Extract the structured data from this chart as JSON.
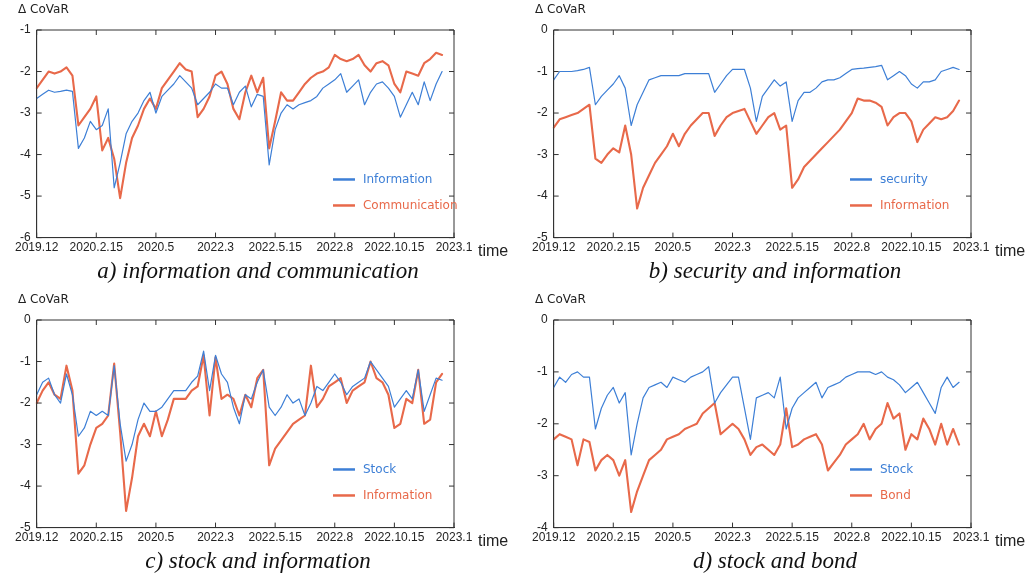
{
  "chart_data": [
    {
      "type": "line",
      "title": "a) information and communication",
      "xlabel": "time",
      "ylabel": "Δ CoVaR",
      "legend": "right",
      "grid": false,
      "marker": "none",
      "line_style": "solid",
      "categories": [
        "2019.12",
        null,
        null,
        null,
        null,
        null,
        null,
        null,
        null,
        null,
        "2020.2.15",
        null,
        null,
        null,
        null,
        null,
        null,
        null,
        null,
        null,
        "2020.5",
        null,
        null,
        null,
        null,
        null,
        null,
        null,
        null,
        null,
        "2022.3",
        null,
        null,
        null,
        null,
        null,
        null,
        null,
        null,
        null,
        "2022.5.15",
        null,
        null,
        null,
        null,
        null,
        null,
        null,
        null,
        null,
        "2022.8",
        null,
        null,
        null,
        null,
        null,
        null,
        null,
        null,
        null,
        "2022.10.15",
        null,
        null,
        null,
        null,
        null,
        null,
        null,
        null,
        null,
        "2023.1"
      ],
      "ylim": [
        -6,
        -1
      ],
      "yticks": [
        -6,
        -5,
        -4,
        -3,
        -2,
        -1
      ],
      "series": [
        {
          "name": "Information",
          "color": "#3d7fd6",
          "values": [
            -2.65,
            -2.55,
            -2.45,
            -2.5,
            -2.48,
            -2.45,
            -2.48,
            -3.85,
            -3.6,
            -3.2,
            -3.4,
            -3.3,
            -2.9,
            -4.8,
            -4.2,
            -3.5,
            -3.2,
            -3.0,
            -2.7,
            -2.5,
            -3.0,
            -2.6,
            -2.45,
            -2.3,
            -2.1,
            -2.25,
            -2.4,
            -2.8,
            -2.65,
            -2.5,
            -2.3,
            -2.4,
            -2.4,
            -2.8,
            -2.5,
            -2.35,
            -2.85,
            -2.55,
            -2.6,
            -4.25,
            -3.4,
            -3.0,
            -2.8,
            -2.9,
            -2.8,
            -2.75,
            -2.7,
            -2.6,
            -2.4,
            -2.3,
            -2.2,
            -2.05,
            -2.5,
            -2.35,
            -2.2,
            -2.8,
            -2.5,
            -2.3,
            -2.25,
            -2.4,
            -2.6,
            -3.1,
            -2.8,
            -2.5,
            -2.8,
            -2.25,
            -2.7,
            -2.3,
            -2.0,
            null,
            null
          ]
        },
        {
          "name": "Communication",
          "color": "#e8694a",
          "values": [
            -2.4,
            -2.2,
            -2.0,
            -2.05,
            -2.0,
            -1.9,
            -2.1,
            -3.3,
            -3.1,
            -2.9,
            -2.6,
            -3.9,
            -3.6,
            -4.1,
            -5.05,
            -4.2,
            -3.6,
            -3.3,
            -2.9,
            -2.65,
            -2.9,
            -2.4,
            -2.2,
            -2.0,
            -1.8,
            -1.95,
            -2.0,
            -3.1,
            -2.9,
            -2.6,
            -2.1,
            -2.0,
            -2.3,
            -2.9,
            -3.15,
            -2.5,
            -2.1,
            -2.5,
            -2.15,
            -3.85,
            -3.2,
            -2.5,
            -2.7,
            -2.7,
            -2.5,
            -2.3,
            -2.15,
            -2.05,
            -2.0,
            -1.9,
            -1.6,
            -1.7,
            -1.75,
            -1.7,
            -1.6,
            -1.85,
            -2.0,
            -1.8,
            -1.75,
            -1.85,
            -2.3,
            -2.5,
            -2.0,
            -2.05,
            -2.1,
            -1.8,
            -1.7,
            -1.55,
            -1.6,
            null,
            null
          ]
        }
      ]
    },
    {
      "type": "line",
      "title": "b) security and information",
      "xlabel": "time",
      "ylabel": "Δ CoVaR",
      "legend": "right",
      "grid": false,
      "marker": "none",
      "line_style": "solid",
      "categories": [
        "2019.12",
        null,
        null,
        null,
        null,
        null,
        null,
        null,
        null,
        null,
        "2020.2.15",
        null,
        null,
        null,
        null,
        null,
        null,
        null,
        null,
        null,
        "2020.5",
        null,
        null,
        null,
        null,
        null,
        null,
        null,
        null,
        null,
        "2022.3",
        null,
        null,
        null,
        null,
        null,
        null,
        null,
        null,
        null,
        "2022.5.15",
        null,
        null,
        null,
        null,
        null,
        null,
        null,
        null,
        null,
        "2022.8",
        null,
        null,
        null,
        null,
        null,
        null,
        null,
        null,
        null,
        "2022.10.15",
        null,
        null,
        null,
        null,
        null,
        null,
        null,
        null,
        null,
        "2023.1"
      ],
      "ylim": [
        -5,
        0
      ],
      "yticks": [
        -5,
        -4,
        -3,
        -2,
        -1,
        0
      ],
      "series": [
        {
          "name": "security",
          "color": "#3d7fd6",
          "values": [
            -1.2,
            -1.0,
            -1.0,
            -1.0,
            -0.98,
            -0.95,
            -0.9,
            -1.8,
            -1.6,
            -1.45,
            -1.3,
            -1.1,
            -1.4,
            -2.3,
            -1.8,
            -1.5,
            -1.2,
            -1.15,
            -1.1,
            -1.1,
            -1.1,
            -1.1,
            -1.05,
            -1.05,
            -1.05,
            -1.05,
            -1.05,
            -1.5,
            -1.3,
            -1.1,
            -0.95,
            -0.95,
            -0.95,
            -1.4,
            -2.2,
            -1.6,
            -1.4,
            -1.2,
            -1.35,
            -1.25,
            -2.2,
            -1.7,
            -1.5,
            -1.5,
            -1.4,
            -1.25,
            -1.2,
            -1.2,
            -1.15,
            -1.05,
            -0.95,
            -0.93,
            -0.92,
            -0.9,
            -0.88,
            -0.85,
            -1.2,
            -1.1,
            -1.0,
            -1.1,
            -1.3,
            -1.4,
            -1.25,
            -1.25,
            -1.2,
            -1.0,
            -0.95,
            -0.9,
            -0.95,
            null,
            null
          ]
        },
        {
          "name": "Information",
          "color": "#e8694a",
          "values": [
            -2.35,
            -2.15,
            -2.1,
            -2.05,
            -2.0,
            -1.9,
            -1.8,
            -3.1,
            -3.2,
            -3.0,
            -2.85,
            -2.95,
            -2.3,
            -3.0,
            -4.3,
            -3.8,
            -3.5,
            -3.2,
            -3.0,
            -2.8,
            -2.5,
            -2.8,
            -2.5,
            -2.3,
            -2.15,
            -2.0,
            -2.0,
            -2.55,
            -2.3,
            -2.1,
            -2.0,
            -1.95,
            -1.9,
            -2.2,
            -2.5,
            -2.3,
            -2.1,
            -2.0,
            -2.4,
            -2.3,
            -3.8,
            -3.6,
            -3.3,
            -3.15,
            -3.0,
            -2.85,
            -2.7,
            -2.55,
            -2.4,
            -2.2,
            -2.0,
            -1.65,
            -1.7,
            -1.7,
            -1.75,
            -1.85,
            -2.3,
            -2.1,
            -2.0,
            -2.0,
            -2.2,
            -2.7,
            -2.4,
            -2.25,
            -2.1,
            -2.15,
            -2.1,
            -1.95,
            -1.7,
            null,
            null
          ]
        }
      ]
    },
    {
      "type": "line",
      "title": "c) stock and information",
      "xlabel": "time",
      "ylabel": "Δ CoVaR",
      "legend": "right",
      "grid": false,
      "marker": "none",
      "line_style": "solid",
      "categories": [
        "2019.12",
        null,
        null,
        null,
        null,
        null,
        null,
        null,
        null,
        null,
        "2020.2.15",
        null,
        null,
        null,
        null,
        null,
        null,
        null,
        null,
        null,
        "2020.5",
        null,
        null,
        null,
        null,
        null,
        null,
        null,
        null,
        null,
        "2022.3",
        null,
        null,
        null,
        null,
        null,
        null,
        null,
        null,
        null,
        "2022.5.15",
        null,
        null,
        null,
        null,
        null,
        null,
        null,
        null,
        null,
        "2022.8",
        null,
        null,
        null,
        null,
        null,
        null,
        null,
        null,
        null,
        "2022.10.15",
        null,
        null,
        null,
        null,
        null,
        null,
        null,
        null,
        null,
        "2023.1"
      ],
      "ylim": [
        -5,
        0
      ],
      "yticks": [
        -5,
        -4,
        -3,
        -2,
        -1,
        0
      ],
      "series": [
        {
          "name": "Stock",
          "color": "#3d7fd6",
          "values": [
            -1.8,
            -1.5,
            -1.4,
            -1.8,
            -2.0,
            -1.3,
            -1.8,
            -2.8,
            -2.6,
            -2.2,
            -2.3,
            -2.2,
            -2.3,
            -1.1,
            -2.5,
            -3.4,
            -3.0,
            -2.4,
            -2.0,
            -2.2,
            -2.2,
            -2.1,
            -1.9,
            -1.7,
            -1.7,
            -1.7,
            -1.5,
            -1.35,
            -0.75,
            -1.7,
            -0.85,
            -1.3,
            -1.5,
            -2.1,
            -2.5,
            -1.8,
            -1.9,
            -1.5,
            -1.2,
            -2.1,
            -2.3,
            -2.1,
            -1.8,
            -2.0,
            -1.9,
            -2.3,
            -2.0,
            -1.6,
            -1.7,
            -1.5,
            -1.3,
            -1.5,
            -1.8,
            -1.6,
            -1.5,
            -1.4,
            -1.0,
            -1.2,
            -1.4,
            -1.6,
            -2.1,
            -1.9,
            -1.7,
            -1.9,
            -1.2,
            -2.2,
            -1.8,
            -1.4,
            -1.45,
            null,
            null
          ]
        },
        {
          "name": "Information",
          "color": "#e8694a",
          "values": [
            -2.0,
            -1.7,
            -1.5,
            -1.8,
            -1.9,
            -1.1,
            -1.7,
            -3.7,
            -3.5,
            -3.0,
            -2.6,
            -2.5,
            -2.3,
            -1.05,
            -2.7,
            -4.6,
            -3.8,
            -2.8,
            -2.5,
            -2.8,
            -2.2,
            -2.8,
            -2.4,
            -1.9,
            -1.9,
            -1.9,
            -1.7,
            -1.6,
            -0.85,
            -2.3,
            -0.9,
            -1.9,
            -1.8,
            -1.9,
            -2.3,
            -1.8,
            -2.1,
            -1.4,
            -1.2,
            -3.5,
            -3.1,
            -2.9,
            -2.7,
            -2.5,
            -2.4,
            -2.3,
            -1.1,
            -2.1,
            -1.9,
            -1.6,
            -1.5,
            -1.4,
            -2.0,
            -1.7,
            -1.6,
            -1.5,
            -1.0,
            -1.4,
            -1.5,
            -1.8,
            -2.6,
            -2.5,
            -1.9,
            -2.0,
            -1.2,
            -2.5,
            -2.4,
            -1.5,
            -1.3,
            null,
            null
          ]
        }
      ]
    },
    {
      "type": "line",
      "title": "d) stock and bond",
      "xlabel": "time",
      "ylabel": "Δ CoVaR",
      "legend": "right",
      "grid": false,
      "marker": "none",
      "line_style": "solid",
      "categories": [
        "2019.12",
        null,
        null,
        null,
        null,
        null,
        null,
        null,
        null,
        null,
        "2020.2.15",
        null,
        null,
        null,
        null,
        null,
        null,
        null,
        null,
        null,
        "2020.5",
        null,
        null,
        null,
        null,
        null,
        null,
        null,
        null,
        null,
        "2022.3",
        null,
        null,
        null,
        null,
        null,
        null,
        null,
        null,
        null,
        "2022.5.15",
        null,
        null,
        null,
        null,
        null,
        null,
        null,
        null,
        null,
        "2022.8",
        null,
        null,
        null,
        null,
        null,
        null,
        null,
        null,
        null,
        "2022.10.15",
        null,
        null,
        null,
        null,
        null,
        null,
        null,
        null,
        null,
        "2023.1"
      ],
      "ylim": [
        -4,
        0
      ],
      "yticks": [
        -4,
        -3,
        -2,
        -1,
        0
      ],
      "series": [
        {
          "name": "Stock",
          "color": "#3d7fd6",
          "values": [
            -1.3,
            -1.1,
            -1.2,
            -1.05,
            -1.0,
            -1.1,
            -1.1,
            -2.1,
            -1.7,
            -1.45,
            -1.3,
            -1.6,
            -1.4,
            -2.6,
            -2.0,
            -1.5,
            -1.3,
            -1.25,
            -1.2,
            -1.3,
            -1.1,
            -1.15,
            -1.2,
            -1.1,
            -1.05,
            -1.0,
            -0.9,
            -1.6,
            -1.4,
            -1.25,
            -1.1,
            -1.1,
            -1.7,
            -2.3,
            -1.5,
            -1.45,
            -1.4,
            -1.5,
            -1.1,
            -2.1,
            -1.7,
            -1.5,
            -1.4,
            -1.3,
            -1.2,
            -1.5,
            -1.3,
            -1.25,
            -1.2,
            -1.1,
            -1.05,
            -1.0,
            -1.0,
            -1.0,
            -1.05,
            -1.0,
            -1.1,
            -1.15,
            -1.25,
            -1.4,
            -1.3,
            -1.2,
            -1.4,
            -1.6,
            -1.8,
            -1.3,
            -1.1,
            -1.3,
            -1.2,
            null,
            null
          ]
        },
        {
          "name": "Bond",
          "color": "#e8694a",
          "values": [
            -2.3,
            -2.2,
            -2.25,
            -2.3,
            -2.8,
            -2.3,
            -2.35,
            -2.9,
            -2.7,
            -2.6,
            -2.7,
            -3.0,
            -2.7,
            -3.7,
            -3.3,
            -3.0,
            -2.7,
            -2.6,
            -2.5,
            -2.3,
            -2.25,
            -2.2,
            -2.1,
            -2.05,
            -2.0,
            -1.8,
            -1.7,
            -1.6,
            -2.2,
            -2.1,
            -2.0,
            -2.1,
            -2.3,
            -2.6,
            -2.45,
            -2.4,
            -2.5,
            -2.6,
            -2.4,
            -1.7,
            -2.45,
            -2.4,
            -2.3,
            -2.25,
            -2.2,
            -2.4,
            -2.9,
            -2.75,
            -2.6,
            -2.4,
            -2.3,
            -2.2,
            -2.0,
            -2.3,
            -2.1,
            -2.0,
            -1.6,
            -1.9,
            -1.8,
            -2.5,
            -2.2,
            -2.3,
            -1.9,
            -2.1,
            -2.4,
            -2.0,
            -2.4,
            -2.1,
            -2.4,
            null,
            null
          ]
        }
      ]
    }
  ]
}
